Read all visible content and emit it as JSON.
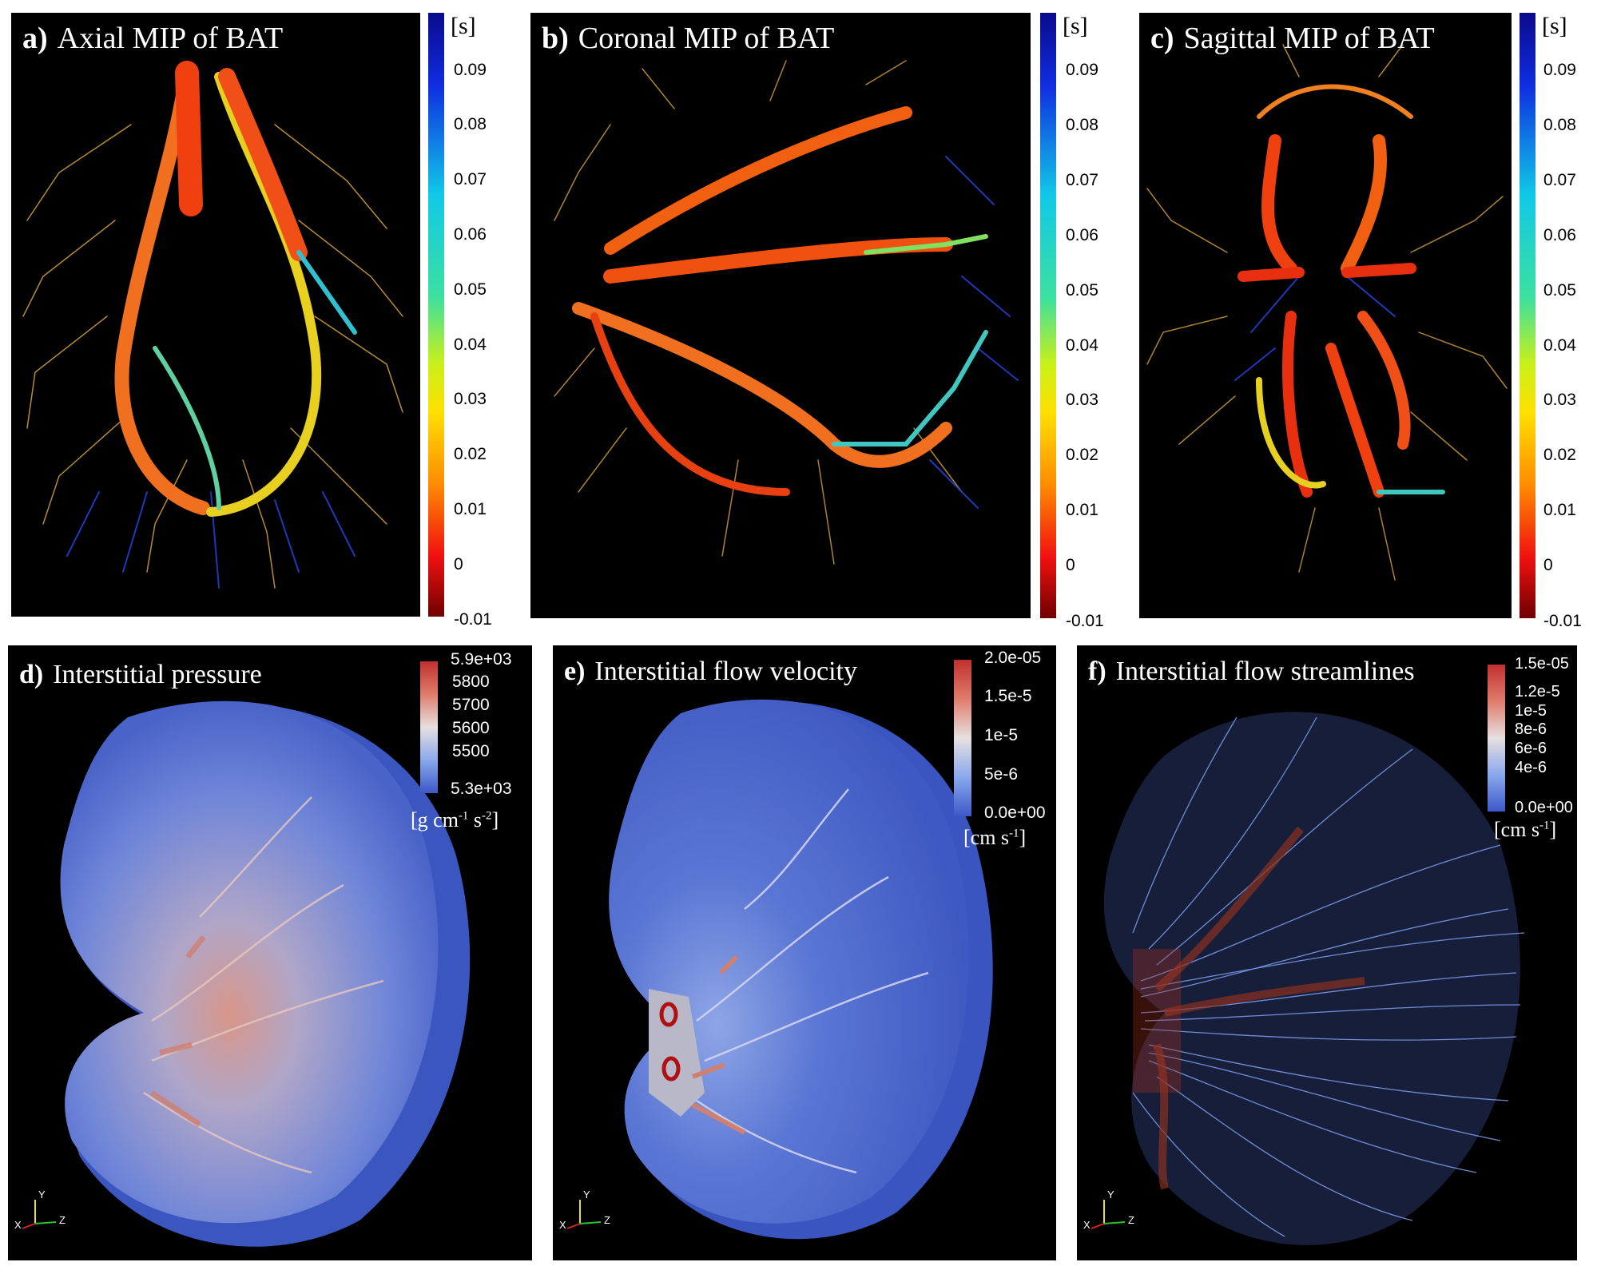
{
  "colors": {
    "jet_top": "#1a1a8c",
    "jet_bottom": "#7a0000",
    "bg": "#000000"
  },
  "top_colorbar": {
    "unit": "[s]",
    "ticks": [
      "0.09",
      "0.08",
      "0.07",
      "0.06",
      "0.05",
      "0.04",
      "0.03",
      "0.02",
      "0.01",
      "0",
      "-0.01"
    ]
  },
  "panels": {
    "a": {
      "letter": "a)",
      "title": "Axial MIP of BAT"
    },
    "b": {
      "letter": "b)",
      "title": "Coronal MIP of BAT"
    },
    "c": {
      "letter": "c)",
      "title": "Sagittal MIP of BAT"
    },
    "d": {
      "letter": "d)",
      "title": "Interstitial pressure",
      "ticks": [
        "5.9e+03",
        "5800",
        "5700",
        "5600",
        "5500",
        "5.3e+03"
      ],
      "unit_main": "[g cm",
      "unit_sup1": "-1",
      "unit_mid": " s",
      "unit_sup2": "-2",
      "unit_end": "]"
    },
    "e": {
      "letter": "e)",
      "title": "Interstitial flow velocity",
      "ticks": [
        "2.0e-05",
        "1.5e-5",
        "1e-5",
        "5e-6",
        "0.0e+00"
      ],
      "unit_main": "[cm s",
      "unit_sup": "-1",
      "unit_end": "]"
    },
    "f": {
      "letter": "f)",
      "title": "Interstitial flow streamlines",
      "ticks": [
        "1.5e-05",
        "1.2e-5",
        "1e-5",
        "8e-6",
        "6e-6",
        "4e-6",
        "0.0e+00"
      ],
      "unit_main": "[cm s",
      "unit_sup": "-1",
      "unit_end": "]"
    }
  },
  "axes_labels": {
    "y": "Y",
    "x": "X",
    "z": "Z"
  }
}
